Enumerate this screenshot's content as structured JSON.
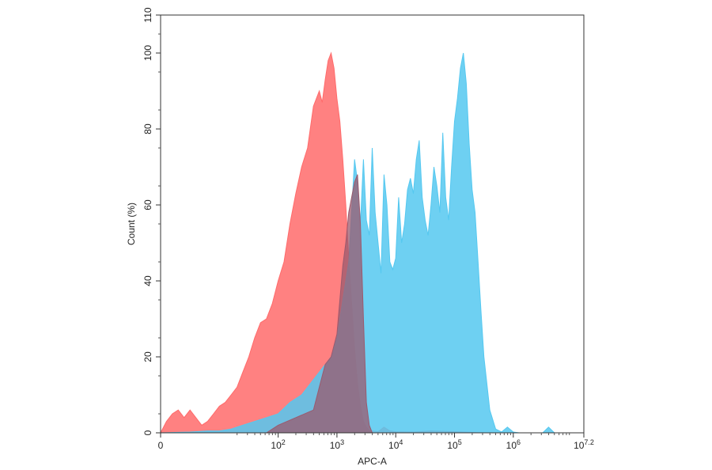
{
  "chart_data": {
    "type": "area",
    "title": "",
    "xlabel": "APC-A",
    "ylabel": "Count (%)",
    "x_scale": "biexponential",
    "xlim": [
      0,
      7.2
    ],
    "ylim": [
      0,
      110
    ],
    "grid": false,
    "x_tick_labels": [
      {
        "pos": 0,
        "base": "0",
        "exp": ""
      },
      {
        "pos": 2,
        "base": "10",
        "exp": "2"
      },
      {
        "pos": 3,
        "base": "10",
        "exp": "3"
      },
      {
        "pos": 4,
        "base": "10",
        "exp": "4"
      },
      {
        "pos": 5,
        "base": "10",
        "exp": "5"
      },
      {
        "pos": 6,
        "base": "10",
        "exp": "6"
      },
      {
        "pos": 7.2,
        "base": "10",
        "exp": "7.2"
      }
    ],
    "y_ticks": [
      0,
      20,
      40,
      60,
      80,
      100,
      110
    ],
    "series": [
      {
        "color": "#ff6b6b",
        "x": [
          0,
          0.1,
          0.2,
          0.3,
          0.4,
          0.5,
          0.6,
          0.7,
          0.8,
          0.9,
          1.0,
          1.1,
          1.2,
          1.3,
          1.4,
          1.5,
          1.6,
          1.7,
          1.8,
          1.9,
          2.0,
          2.1,
          2.2,
          2.3,
          2.4,
          2.5,
          2.6,
          2.7,
          2.75,
          2.8,
          2.85,
          2.9,
          2.95,
          3.0,
          3.05,
          3.1,
          3.15,
          3.2,
          3.25,
          3.3,
          3.35,
          3.4,
          3.45,
          3.5,
          3.55,
          3.6,
          3.7,
          3.8,
          3.9,
          4.0,
          4.3,
          4.6,
          5.0,
          5.5
        ],
        "y": [
          0,
          3,
          5,
          6,
          4,
          6,
          4,
          2,
          3,
          5,
          7,
          8,
          10,
          12,
          16,
          20,
          25,
          29,
          30,
          34,
          40,
          45,
          55,
          63,
          70,
          75,
          86,
          90,
          87,
          93,
          98,
          100,
          96,
          88,
          82,
          72,
          60,
          46,
          34,
          22,
          13,
          7,
          3,
          1.5,
          0.5,
          0.5,
          0.3,
          1.5,
          0.5,
          0.3,
          0.2,
          0.5,
          0.3,
          0
        ],
        "opacity": 0.85
      },
      {
        "color": "#55c8f0",
        "x": [
          0,
          0.5,
          0.8,
          1.0,
          1.2,
          1.4,
          1.6,
          1.8,
          2.0,
          2.2,
          2.4,
          2.6,
          2.8,
          2.9,
          3.0,
          3.1,
          3.2,
          3.3,
          3.35,
          3.4,
          3.45,
          3.5,
          3.55,
          3.6,
          3.65,
          3.7,
          3.75,
          3.8,
          3.85,
          3.9,
          3.95,
          4.0,
          4.05,
          4.1,
          4.15,
          4.2,
          4.25,
          4.3,
          4.35,
          4.4,
          4.45,
          4.5,
          4.55,
          4.6,
          4.65,
          4.7,
          4.75,
          4.8,
          4.85,
          4.9,
          4.95,
          5.0,
          5.05,
          5.1,
          5.15,
          5.2,
          5.25,
          5.3,
          5.35,
          5.4,
          5.45,
          5.5,
          5.6,
          5.7,
          5.8,
          5.9,
          6.0,
          6.05,
          6.1,
          6.5,
          6.6,
          6.7,
          7.2
        ],
        "y": [
          0,
          0.2,
          0.5,
          0.5,
          1,
          2,
          3,
          4,
          5,
          8,
          10,
          14,
          18,
          20,
          25,
          35,
          45,
          72,
          66,
          55,
          72,
          56,
          52,
          75,
          58,
          50,
          42,
          68,
          60,
          45,
          43,
          46,
          62,
          50,
          55,
          64,
          67,
          63,
          72,
          77,
          62,
          56,
          52,
          60,
          70,
          65,
          58,
          79,
          62,
          56,
          70,
          82,
          88,
          96,
          100,
          92,
          76,
          64,
          58,
          45,
          32,
          20,
          6,
          1,
          0.2,
          1.5,
          0.2,
          0.1,
          0,
          0,
          1.5,
          0,
          0
        ],
        "opacity": 0.85
      },
      {
        "color": "#9b5a6e",
        "x": [
          1.8,
          2.0,
          2.3,
          2.6,
          2.7,
          2.8,
          2.9,
          3.0,
          3.05,
          3.1,
          3.15,
          3.2,
          3.25,
          3.3,
          3.35,
          3.4,
          3.45,
          3.5,
          3.55,
          3.6
        ],
        "y": [
          0,
          2,
          4,
          6,
          12,
          18,
          20,
          26,
          35,
          44,
          50,
          58,
          62,
          66,
          68,
          55,
          30,
          8,
          2,
          0
        ],
        "opacity": 0.75
      }
    ]
  }
}
